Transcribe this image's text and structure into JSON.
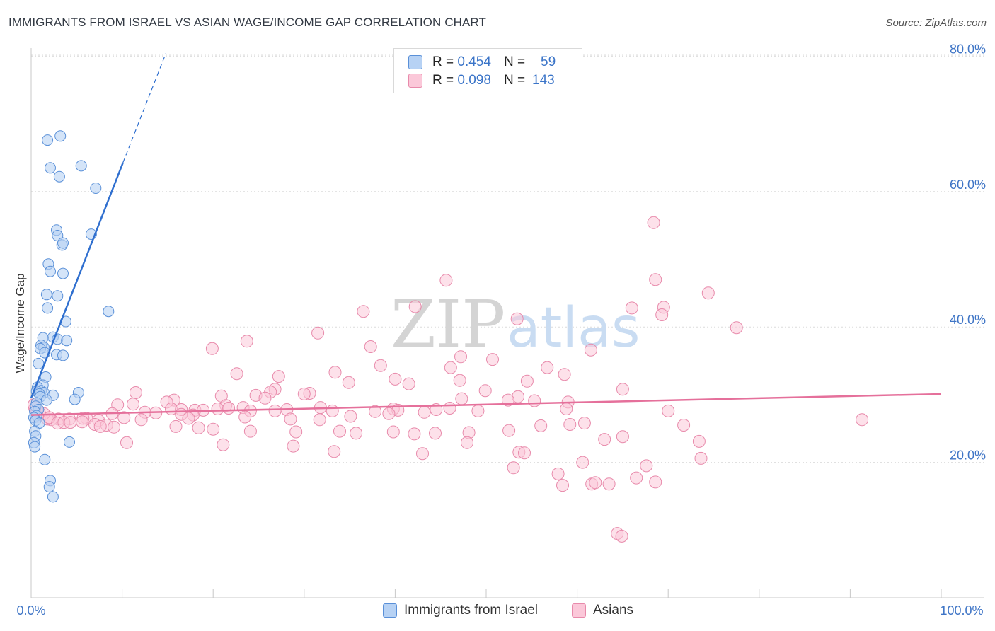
{
  "title": "IMMIGRANTS FROM ISRAEL VS ASIAN WAGE/INCOME GAP CORRELATION CHART",
  "source": "Source: ZipAtlas.com",
  "watermark": {
    "zip": "ZIP",
    "atlas": "atlas"
  },
  "legend_top": [
    {
      "r_label": "R =",
      "r_value": "0.454",
      "n_label": "N =",
      "n_value": "59"
    },
    {
      "r_label": "R =",
      "r_value": "0.098",
      "n_label": "N =",
      "n_value": "143"
    }
  ],
  "legend_bottom": [
    {
      "label": "Immigrants from Israel"
    },
    {
      "label": "Asians"
    }
  ],
  "colors": {
    "israel_fill": "#b7d2f4",
    "israel_stroke": "#5a90d8",
    "israel_line": "#2f6fcf",
    "asian_fill": "#fbc8d9",
    "asian_stroke": "#e88aab",
    "asian_line": "#e5709b",
    "grid": "#dcdcdc",
    "axis_text": "#3f75c6"
  },
  "chart_data": {
    "type": "scatter",
    "title": "IMMIGRANTS FROM ISRAEL VS ASIAN WAGE/INCOME GAP CORRELATION CHART",
    "xlabel": "",
    "ylabel": "Wage/Income Gap",
    "xlim": [
      0,
      100
    ],
    "ylim": [
      0,
      82
    ],
    "x_tick_labels": [
      "0.0%",
      "100.0%"
    ],
    "y_ticks": [
      20,
      40,
      60,
      80
    ],
    "y_tick_labels": [
      "20.0%",
      "40.0%",
      "60.0%",
      "80.0%"
    ],
    "grid": true,
    "legend_position": "top-center",
    "series": [
      {
        "name": "Immigrants from Israel",
        "R": 0.454,
        "N": 59,
        "trend": {
          "x0": 0.0,
          "y0": 29.5,
          "x1": 10.1,
          "y1": 64.3,
          "dash_to_x": 14.8,
          "dash_to_y": 80.4
        },
        "points": [
          [
            1.8,
            67.6
          ],
          [
            3.2,
            68.2
          ],
          [
            2.1,
            63.5
          ],
          [
            5.5,
            63.8
          ],
          [
            3.1,
            62.2
          ],
          [
            7.1,
            60.5
          ],
          [
            2.8,
            54.3
          ],
          [
            2.9,
            53.5
          ],
          [
            3.4,
            52.1
          ],
          [
            3.5,
            52.4
          ],
          [
            6.6,
            53.7
          ],
          [
            1.9,
            49.3
          ],
          [
            2.1,
            48.2
          ],
          [
            3.5,
            47.9
          ],
          [
            1.7,
            44.8
          ],
          [
            2.9,
            44.6
          ],
          [
            1.8,
            42.8
          ],
          [
            8.5,
            42.3
          ],
          [
            3.8,
            40.8
          ],
          [
            2.4,
            38.5
          ],
          [
            2.9,
            38.2
          ],
          [
            1.3,
            38.4
          ],
          [
            3.9,
            38.0
          ],
          [
            1.1,
            37.3
          ],
          [
            1.4,
            37.0
          ],
          [
            1.0,
            36.8
          ],
          [
            1.5,
            36.2
          ],
          [
            2.8,
            35.9
          ],
          [
            3.5,
            35.8
          ],
          [
            0.8,
            34.6
          ],
          [
            1.6,
            32.6
          ],
          [
            1.3,
            31.4
          ],
          [
            0.7,
            31.1
          ],
          [
            1.1,
            30.6
          ],
          [
            1.4,
            30.3
          ],
          [
            0.6,
            30.5
          ],
          [
            0.9,
            30.1
          ],
          [
            1.0,
            29.7
          ],
          [
            2.4,
            29.9
          ],
          [
            5.2,
            30.3
          ],
          [
            4.8,
            29.3
          ],
          [
            1.7,
            29.2
          ],
          [
            0.6,
            28.8
          ],
          [
            0.5,
            28.3
          ],
          [
            0.8,
            27.8
          ],
          [
            0.4,
            27.5
          ],
          [
            0.6,
            26.9
          ],
          [
            0.3,
            26.6
          ],
          [
            0.5,
            26.2
          ],
          [
            0.9,
            25.8
          ],
          [
            0.4,
            24.6
          ],
          [
            0.5,
            23.9
          ],
          [
            0.3,
            22.9
          ],
          [
            0.4,
            22.3
          ],
          [
            4.2,
            23.0
          ],
          [
            1.5,
            20.4
          ],
          [
            2.1,
            17.3
          ],
          [
            2.0,
            16.4
          ],
          [
            2.4,
            14.9
          ]
        ]
      },
      {
        "name": "Asians",
        "R": 0.098,
        "N": 143,
        "trend": {
          "x0": 0.0,
          "y0": 27.0,
          "x1": 100.0,
          "y1": 30.1
        },
        "points": [
          [
            68.4,
            55.4
          ],
          [
            45.6,
            46.9
          ],
          [
            68.6,
            47.0
          ],
          [
            74.4,
            45.0
          ],
          [
            42.2,
            43.0
          ],
          [
            66.0,
            42.8
          ],
          [
            36.5,
            42.3
          ],
          [
            69.5,
            42.9
          ],
          [
            69.3,
            41.8
          ],
          [
            53.4,
            41.2
          ],
          [
            77.5,
            39.9
          ],
          [
            31.5,
            39.1
          ],
          [
            23.7,
            37.9
          ],
          [
            37.3,
            37.1
          ],
          [
            19.9,
            36.8
          ],
          [
            61.5,
            36.6
          ],
          [
            47.2,
            35.6
          ],
          [
            38.4,
            34.3
          ],
          [
            50.7,
            35.2
          ],
          [
            46.1,
            34.0
          ],
          [
            56.7,
            34.0
          ],
          [
            22.6,
            33.1
          ],
          [
            33.4,
            33.3
          ],
          [
            58.6,
            33.0
          ],
          [
            27.2,
            32.7
          ],
          [
            40.0,
            32.3
          ],
          [
            47.1,
            32.1
          ],
          [
            34.9,
            31.8
          ],
          [
            41.5,
            31.6
          ],
          [
            54.5,
            32.0
          ],
          [
            26.8,
            30.8
          ],
          [
            65.0,
            30.8
          ],
          [
            49.9,
            30.6
          ],
          [
            11.5,
            30.3
          ],
          [
            26.3,
            30.4
          ],
          [
            30.6,
            30.2
          ],
          [
            53.5,
            29.7
          ],
          [
            20.9,
            29.8
          ],
          [
            24.7,
            29.9
          ],
          [
            30.0,
            30.1
          ],
          [
            25.7,
            29.5
          ],
          [
            47.3,
            29.4
          ],
          [
            15.7,
            29.2
          ],
          [
            52.4,
            29.2
          ],
          [
            55.3,
            29.1
          ],
          [
            59.0,
            28.9
          ],
          [
            9.5,
            28.5
          ],
          [
            11.2,
            28.6
          ],
          [
            14.9,
            28.9
          ],
          [
            21.4,
            28.4
          ],
          [
            23.3,
            28.1
          ],
          [
            31.8,
            28.1
          ],
          [
            28.1,
            27.8
          ],
          [
            39.8,
            27.9
          ],
          [
            44.5,
            27.8
          ],
          [
            58.8,
            27.9
          ],
          [
            13.7,
            27.3
          ],
          [
            15.4,
            27.9
          ],
          [
            16.5,
            27.8
          ],
          [
            18.0,
            27.7
          ],
          [
            18.9,
            27.7
          ],
          [
            20.5,
            27.9
          ],
          [
            21.7,
            28.0
          ],
          [
            24.1,
            27.6
          ],
          [
            26.8,
            27.6
          ],
          [
            33.1,
            27.6
          ],
          [
            37.8,
            27.5
          ],
          [
            40.3,
            27.7
          ],
          [
            46.0,
            28.0
          ],
          [
            49.1,
            27.6
          ],
          [
            70.0,
            27.6
          ],
          [
            12.5,
            27.4
          ],
          [
            16.5,
            27.1
          ],
          [
            17.8,
            27.0
          ],
          [
            8.9,
            27.2
          ],
          [
            10.2,
            26.6
          ],
          [
            6.1,
            26.5
          ],
          [
            7.4,
            26.2
          ],
          [
            5.7,
            26.5
          ],
          [
            4.2,
            26.4
          ],
          [
            3.0,
            26.4
          ],
          [
            2.2,
            26.3
          ],
          [
            1.8,
            26.4
          ],
          [
            1.4,
            27.2
          ],
          [
            0.9,
            27.3
          ],
          [
            0.7,
            26.8
          ],
          [
            0.6,
            27.7
          ],
          [
            0.4,
            28.0
          ],
          [
            0.3,
            28.5
          ],
          [
            2.0,
            26.6
          ],
          [
            2.9,
            25.8
          ],
          [
            3.6,
            25.9
          ],
          [
            4.3,
            25.9
          ],
          [
            5.6,
            26.0
          ],
          [
            7.0,
            25.6
          ],
          [
            8.3,
            25.5
          ],
          [
            9.1,
            25.2
          ],
          [
            12.1,
            26.3
          ],
          [
            17.3,
            26.5
          ],
          [
            23.5,
            26.7
          ],
          [
            28.5,
            26.4
          ],
          [
            31.7,
            26.3
          ],
          [
            35.1,
            26.8
          ],
          [
            39.3,
            27.2
          ],
          [
            43.2,
            27.4
          ],
          [
            59.2,
            25.6
          ],
          [
            60.8,
            25.8
          ],
          [
            71.7,
            25.5
          ],
          [
            7.6,
            25.3
          ],
          [
            15.9,
            25.3
          ],
          [
            18.4,
            25.1
          ],
          [
            20.0,
            24.9
          ],
          [
            24.1,
            24.6
          ],
          [
            29.1,
            24.5
          ],
          [
            33.9,
            24.6
          ],
          [
            35.7,
            24.3
          ],
          [
            39.8,
            24.5
          ],
          [
            42.1,
            24.2
          ],
          [
            44.4,
            24.3
          ],
          [
            48.1,
            24.4
          ],
          [
            52.5,
            24.7
          ],
          [
            56.0,
            25.4
          ],
          [
            63.0,
            23.4
          ],
          [
            65.0,
            23.8
          ],
          [
            73.4,
            23.1
          ],
          [
            91.3,
            26.3
          ],
          [
            10.5,
            22.9
          ],
          [
            21.1,
            22.6
          ],
          [
            28.8,
            22.4
          ],
          [
            33.3,
            21.6
          ],
          [
            43.0,
            21.3
          ],
          [
            47.9,
            22.9
          ],
          [
            53.6,
            21.5
          ],
          [
            54.2,
            21.4
          ],
          [
            57.9,
            18.3
          ],
          [
            61.6,
            16.8
          ],
          [
            63.5,
            16.8
          ],
          [
            66.5,
            17.7
          ],
          [
            67.6,
            19.5
          ],
          [
            68.6,
            17.1
          ],
          [
            73.6,
            20.6
          ],
          [
            53.0,
            19.2
          ],
          [
            60.6,
            20.0
          ],
          [
            62.0,
            17.0
          ],
          [
            58.4,
            16.6
          ],
          [
            64.4,
            9.5
          ],
          [
            64.9,
            9.1
          ]
        ]
      }
    ]
  }
}
